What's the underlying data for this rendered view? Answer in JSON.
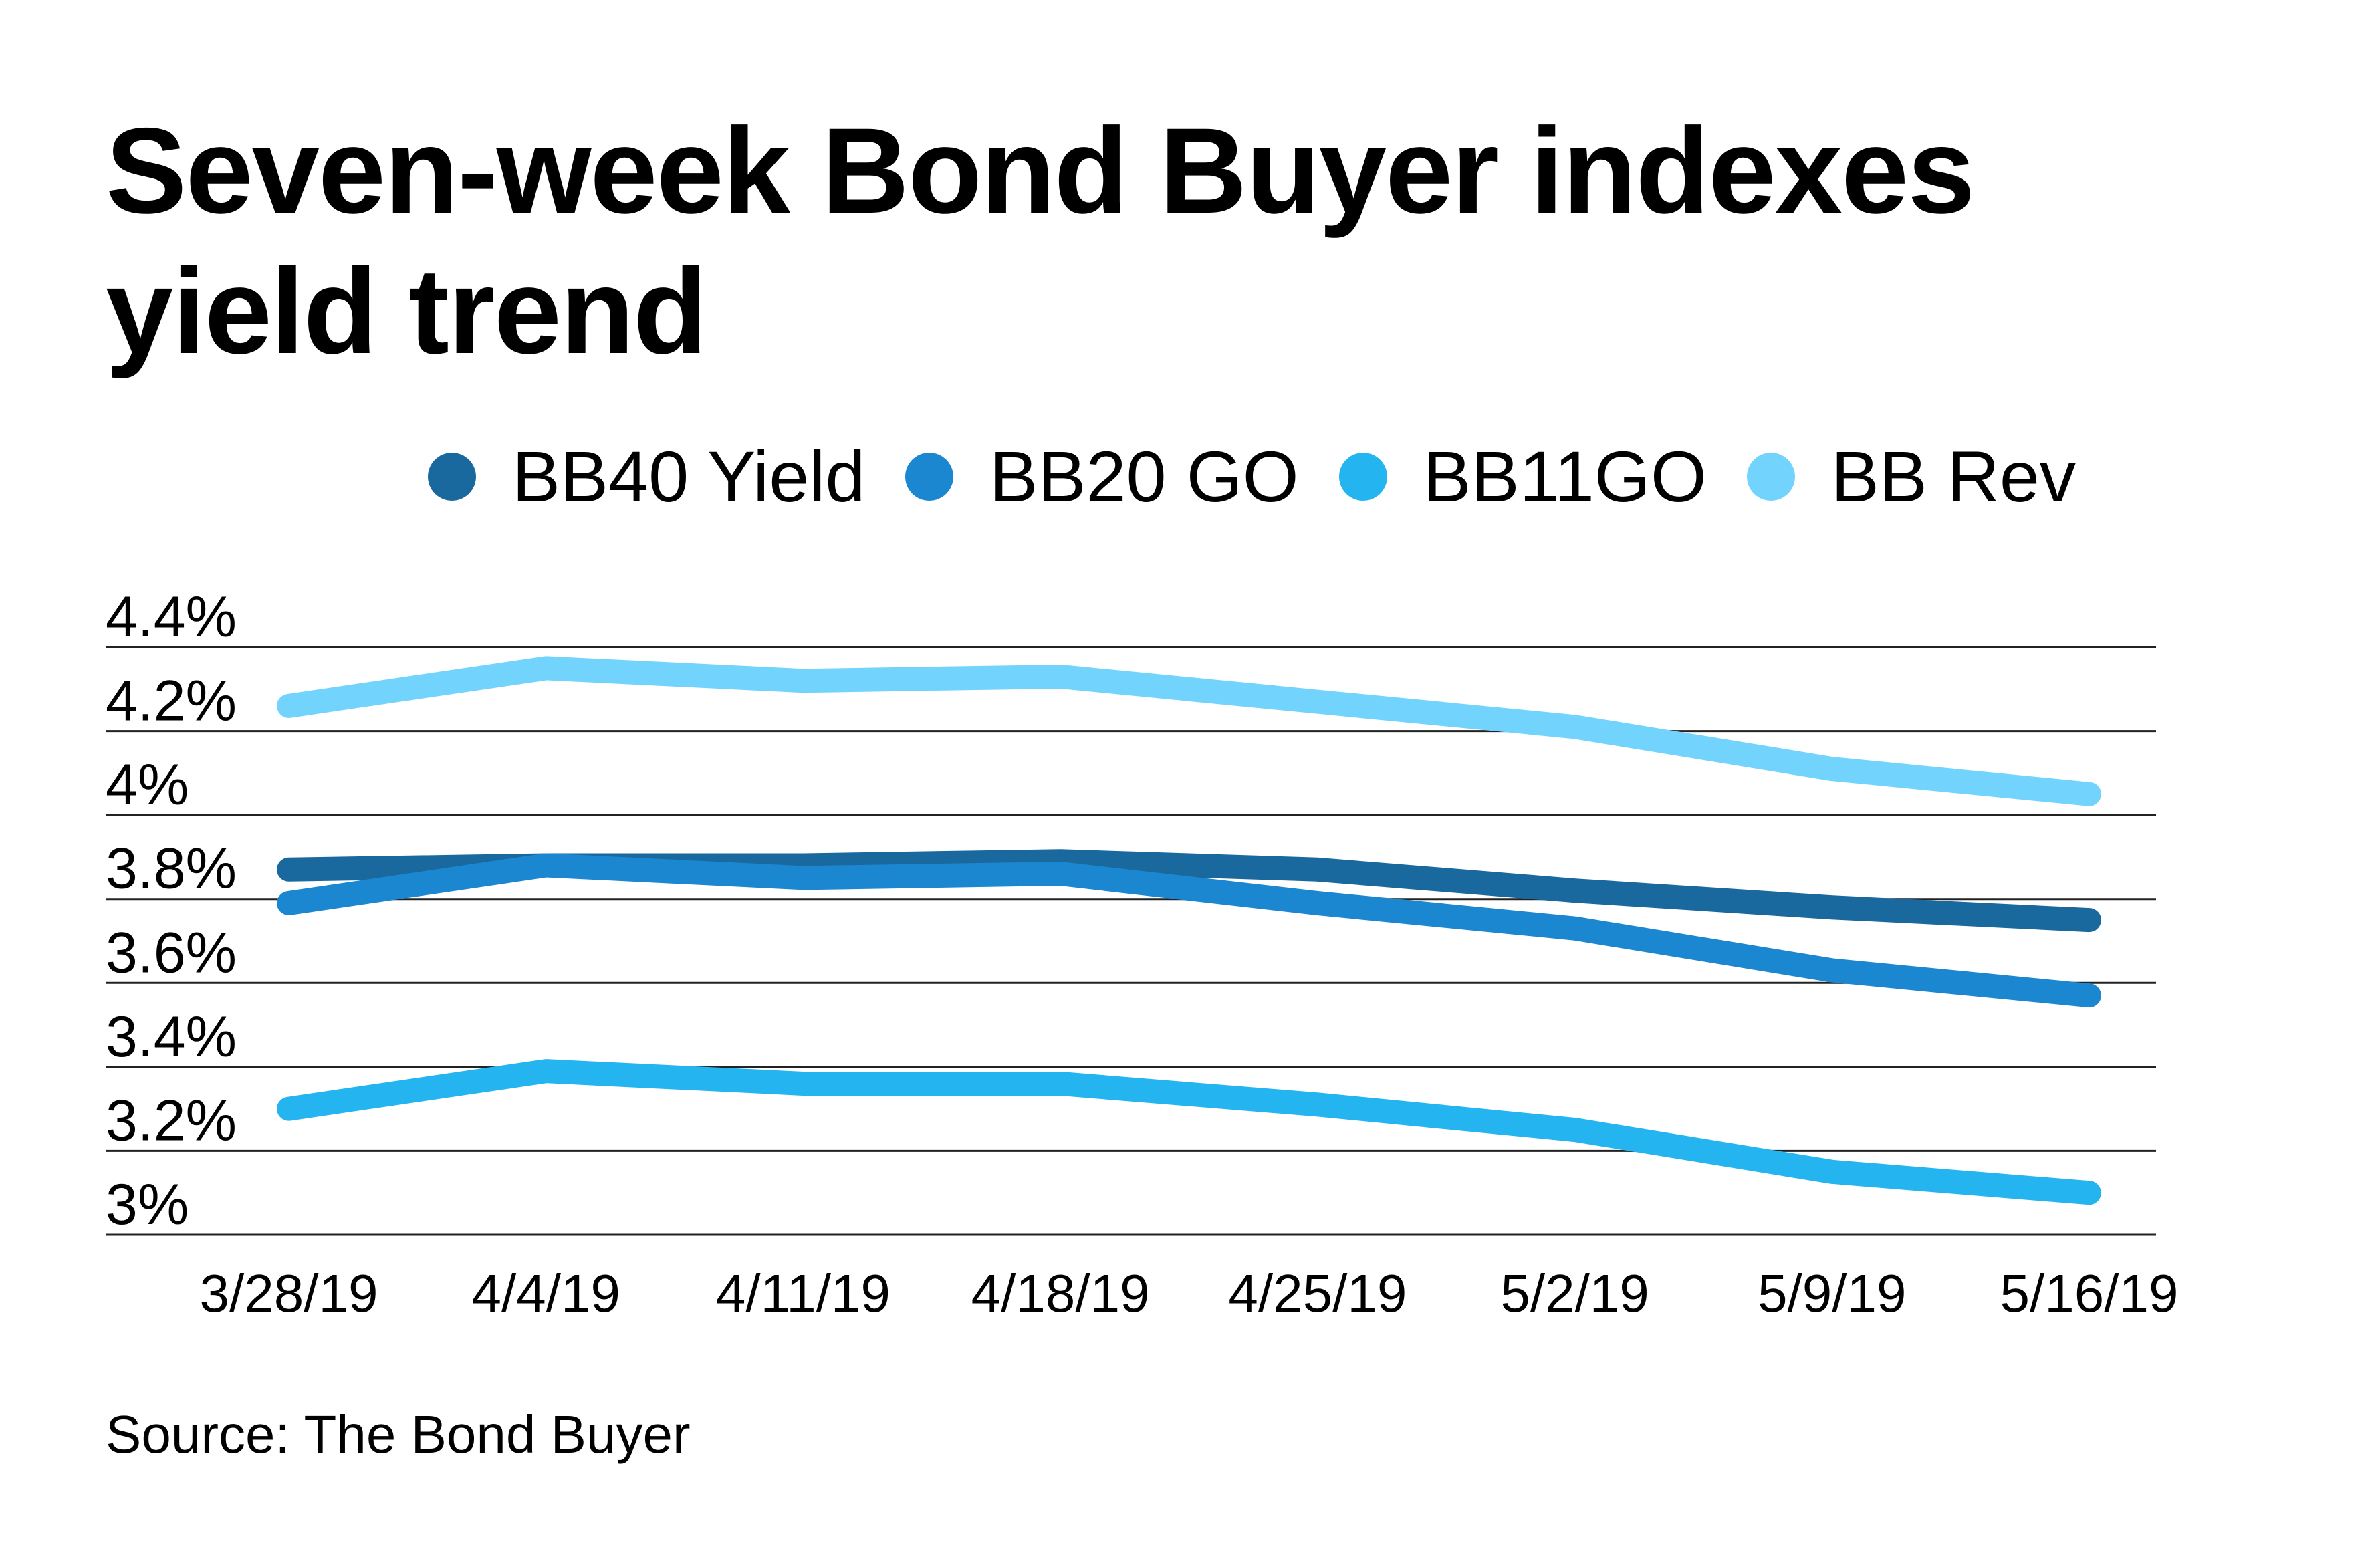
{
  "title": "Seven-week Bond Buyer indexes yield trend",
  "source": "Source: The Bond Buyer",
  "chart_data": {
    "type": "line",
    "title": "Seven-week Bond Buyer indexes yield trend",
    "xlabel": "",
    "ylabel": "",
    "categories": [
      "3/28/19",
      "4/4/19",
      "4/11/19",
      "4/18/19",
      "4/25/19",
      "5/2/19",
      "5/9/19",
      "5/16/19"
    ],
    "ylim": [
      3.0,
      4.4
    ],
    "yticks": [
      3.0,
      3.2,
      3.4,
      3.6,
      3.8,
      4.0,
      4.2,
      4.4
    ],
    "ytick_labels": [
      "3%",
      "3.2%",
      "3.4%",
      "3.6%",
      "3.8%",
      "4%",
      "4.2%",
      "4.4%"
    ],
    "grid": true,
    "legend_position": "top",
    "series": [
      {
        "name": "BB40 Yield",
        "color": "#1a699e",
        "values": [
          3.87,
          3.88,
          3.88,
          3.89,
          3.87,
          3.82,
          3.78,
          3.75
        ]
      },
      {
        "name": "BB20 GO",
        "color": "#1b87d0",
        "values": [
          3.79,
          3.88,
          3.85,
          3.86,
          3.79,
          3.73,
          3.63,
          3.57
        ]
      },
      {
        "name": "BB11GO",
        "color": "#24b5f0",
        "values": [
          3.3,
          3.39,
          3.36,
          3.36,
          3.31,
          3.25,
          3.15,
          3.1
        ]
      },
      {
        "name": "BB Rev",
        "color": "#72d4fd",
        "values": [
          4.26,
          4.35,
          4.32,
          4.33,
          4.27,
          4.21,
          4.11,
          4.05
        ]
      }
    ]
  }
}
